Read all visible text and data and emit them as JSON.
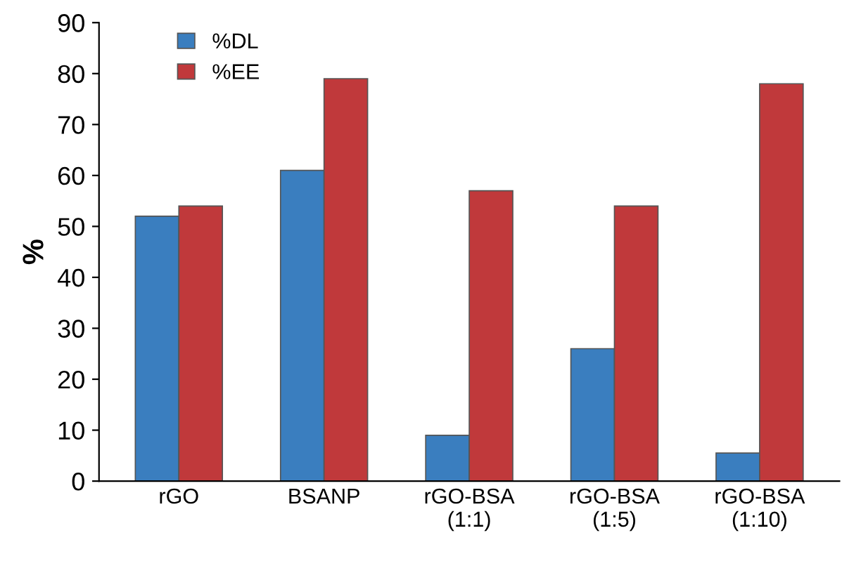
{
  "chart_data": {
    "type": "bar",
    "ylabel": "%",
    "categories": [
      "rGO",
      "BSANP",
      "rGO-BSA\n(1:1)",
      "rGO-BSA\n(1:5)",
      "rGO-BSA\n(1:10)"
    ],
    "series": [
      {
        "name": "%DL",
        "color": "#3a7ebf",
        "values": [
          52,
          61,
          9,
          26,
          5.5
        ]
      },
      {
        "name": "%EE",
        "color": "#c0393b",
        "values": [
          54,
          79,
          57,
          54,
          78
        ]
      }
    ],
    "ylim": [
      0,
      90
    ],
    "yticks": [
      0,
      10,
      20,
      30,
      40,
      50,
      60,
      70,
      80,
      90
    ],
    "grid": false,
    "legend": "top left"
  }
}
